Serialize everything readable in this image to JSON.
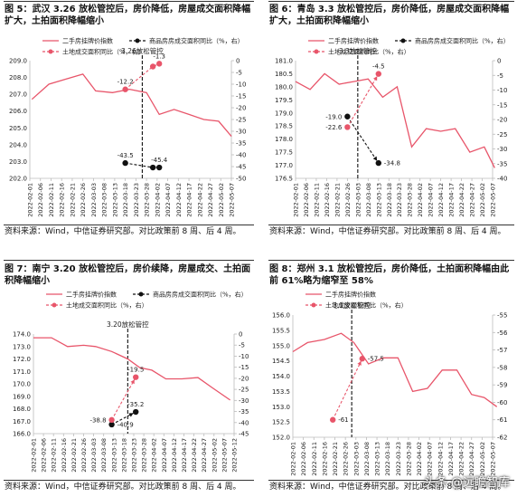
{
  "watermark": "头条 @远瞻智库",
  "chart_data": [
    {
      "type": "line",
      "title": "图 5：武汉 3.26 放松管控后，房价降低，房屋成交面积降幅扩大，土拍面积降幅缩小",
      "source": "资料来源：Wind，中信证券研究部。对比政策前 8 周、后 4 周。",
      "x": [
        "2022-02-01",
        "2022-02-06",
        "2022-02-11",
        "2022-02-16",
        "2022-02-21",
        "2022-02-26",
        "2022-03-03",
        "2022-03-08",
        "2022-03-13",
        "2022-03-18",
        "2022-03-23",
        "2022-03-28",
        "2022-04-02",
        "2022-04-07",
        "2022-04-12",
        "2022-04-17",
        "2022-04-22",
        "2022-04-27",
        "2022-05-02",
        "2022-05-07"
      ],
      "ylim_left": [
        202,
        209
      ],
      "yticks_left": [
        "202.0",
        "203.0",
        "204.0",
        "205.0",
        "206.0",
        "207.0",
        "208.0",
        "209.0"
      ],
      "ylim_right": [
        -50,
        0
      ],
      "yticks_right": [
        "0",
        "-5",
        "-10",
        "-15",
        "-20",
        "-25",
        "-30",
        "-35",
        "-40",
        "-45",
        "-50"
      ],
      "policy_line": {
        "label": "3.26放松管控",
        "x": "2022-03-26"
      },
      "legend": [
        "二手房挂牌价指数",
        "商品房房成交面积同比（%，右）",
        "土地成交面积同比（%，右）"
      ],
      "series": [
        {
          "name": "二手房挂牌价指数",
          "axis": "left",
          "color": "#e8556a",
          "style": "line",
          "points": [
            [
              "2022-02-02",
              206.7
            ],
            [
              "2022-02-10",
              207.6
            ],
            [
              "2022-02-18",
              207.9
            ],
            [
              "2022-02-26",
              208.2
            ],
            [
              "2022-03-04",
              207.2
            ],
            [
              "2022-03-12",
              207.1
            ],
            [
              "2022-03-20",
              207.3
            ],
            [
              "2022-03-28",
              207.1
            ],
            [
              "2022-04-03",
              205.8
            ],
            [
              "2022-04-10",
              206.1
            ],
            [
              "2022-04-17",
              205.8
            ],
            [
              "2022-04-24",
              205.5
            ],
            [
              "2022-05-01",
              205.4
            ],
            [
              "2022-05-07",
              204.5
            ]
          ]
        },
        {
          "name": "商品房房成交面积同比（%，右）",
          "axis": "right",
          "color": "#111111",
          "style": "dash",
          "points": [
            [
              "2022-03-18",
              -43.5
            ],
            [
              "2022-03-31",
              -45.4
            ],
            [
              "2022-04-03",
              -45.4
            ]
          ],
          "labels": [
            {
              "text": "-43.5",
              "i": 0,
              "pos": "above"
            },
            {
              "text": "-45.4",
              "i": 2,
              "pos": "above"
            }
          ]
        },
        {
          "name": "土地成交面积同比（%，右）",
          "axis": "right",
          "color": "#e8556a",
          "style": "dash",
          "points": [
            [
              "2022-03-18",
              -12.2
            ],
            [
              "2022-03-31",
              -2.5
            ],
            [
              "2022-04-03",
              -1.3
            ]
          ],
          "labels": [
            {
              "text": "-12.2",
              "i": 0,
              "pos": "above"
            },
            {
              "text": "-1.3",
              "i": 2,
              "pos": "above"
            }
          ]
        }
      ]
    },
    {
      "type": "line",
      "title": "图 6：青岛 3.3 放松管控后，房价降低，房屋成交面积降幅扩大，土拍面积降幅缩小",
      "source": "资料来源：Wind，中信证券研究部。对比政策前 8 周、后 4 周。",
      "x": [
        "2022-02-01",
        "2022-02-06",
        "2022-02-11",
        "2022-02-16",
        "2022-02-21",
        "2022-02-26",
        "2022-03-03",
        "2022-03-08",
        "2022-03-13",
        "2022-03-18",
        "2022-03-23",
        "2022-03-28",
        "2022-04-02",
        "2022-04-07",
        "2022-04-12",
        "2022-04-17",
        "2022-04-22",
        "2022-04-27",
        "2022-05-02",
        "2022-05-07"
      ],
      "ylim_left": [
        176.5,
        181
      ],
      "yticks_left": [
        "176.5",
        "177.0",
        "177.5",
        "178.0",
        "178.5",
        "179.0",
        "179.5",
        "180.0",
        "180.5",
        "181.0"
      ],
      "ylim_right": [
        -40,
        0
      ],
      "yticks_right": [
        "0",
        "-5",
        "-10",
        "-15",
        "-20",
        "-25",
        "-30",
        "-35",
        "-40"
      ],
      "policy_line": {
        "label": "3.3放松管控",
        "x": "2022-03-03"
      },
      "legend": [
        "二手房挂牌价指数",
        "商品房房成交面积同比（%，右）",
        "土地成交面积同比（%，右）"
      ],
      "series": [
        {
          "name": "二手房挂牌价指数",
          "axis": "left",
          "color": "#e8556a",
          "style": "line",
          "points": [
            [
              "2022-02-01",
              180.2
            ],
            [
              "2022-02-08",
              179.9
            ],
            [
              "2022-02-15",
              180.5
            ],
            [
              "2022-02-22",
              180.1
            ],
            [
              "2022-03-01",
              180.2
            ],
            [
              "2022-03-08",
              180.3
            ],
            [
              "2022-03-15",
              179.6
            ],
            [
              "2022-03-22",
              180.0
            ],
            [
              "2022-03-29",
              177.7
            ],
            [
              "2022-04-05",
              178.4
            ],
            [
              "2022-04-12",
              178.3
            ],
            [
              "2022-04-19",
              178.4
            ],
            [
              "2022-04-26",
              177.5
            ],
            [
              "2022-05-03",
              177.7
            ],
            [
              "2022-05-08",
              176.9
            ]
          ]
        },
        {
          "name": "商品房房成交面积同比（%，右）",
          "axis": "right",
          "color": "#111111",
          "style": "dash",
          "points": [
            [
              "2022-02-26",
              -19.0
            ],
            [
              "2022-03-13",
              -34.8
            ]
          ],
          "labels": [
            {
              "text": "-19.0",
              "i": 0,
              "pos": "left"
            },
            {
              "text": "-34.8",
              "i": 1,
              "pos": "right"
            }
          ]
        },
        {
          "name": "土地成交面积同比（%，右）",
          "axis": "right",
          "color": "#e8556a",
          "style": "dash",
          "points": [
            [
              "2022-02-26",
              -22.6
            ],
            [
              "2022-03-13",
              -4.5
            ]
          ],
          "labels": [
            {
              "text": "-22.6",
              "i": 0,
              "pos": "left"
            },
            {
              "text": "-4.5",
              "i": 1,
              "pos": "above"
            }
          ]
        }
      ]
    },
    {
      "type": "line",
      "title": "图 7：南宁 3.20 放松管控后，房价续降，房屋成交、土拍面积降幅缩小",
      "source": "资料来源：Wind，中信证券研究部。对比政策前 8 周、后 4 周。",
      "x": [
        "2022-02-01",
        "2022-02-06",
        "2022-02-11",
        "2022-02-16",
        "2022-02-21",
        "2022-02-26",
        "2022-03-03",
        "2022-03-08",
        "2022-03-13",
        "2022-03-18",
        "2022-03-23",
        "2022-03-28",
        "2022-04-02",
        "2022-04-07",
        "2022-04-12",
        "2022-04-17",
        "2022-04-22",
        "2022-04-27",
        "2022-05-02",
        "2022-05-07",
        "2022-05-12"
      ],
      "ylim_left": [
        166,
        174
      ],
      "yticks_left": [
        "166.0",
        "167.0",
        "168.0",
        "169.0",
        "170.0",
        "171.0",
        "172.0",
        "173.0",
        "174.0"
      ],
      "ylim_right": [
        -45,
        0
      ],
      "yticks_right": [
        "0",
        "-5",
        "-10",
        "-15",
        "-20",
        "-25",
        "-30",
        "-35",
        "-40",
        "-45"
      ],
      "policy_line": {
        "label": "3.20放松管控",
        "x": "2022-03-20"
      },
      "legend": [
        "二手房挂牌价指数",
        "商品房房成交面积同比（%，右）",
        "土地成交面积同比（%，右）"
      ],
      "series": [
        {
          "name": "二手房挂牌价指数",
          "axis": "left",
          "color": "#e8556a",
          "style": "line",
          "points": [
            [
              "2022-02-01",
              173.7
            ],
            [
              "2022-02-10",
              173.7
            ],
            [
              "2022-02-18",
              173.0
            ],
            [
              "2022-02-26",
              173.1
            ],
            [
              "2022-03-04",
              173.0
            ],
            [
              "2022-03-12",
              172.6
            ],
            [
              "2022-03-20",
              172.0
            ],
            [
              "2022-03-26",
              171.3
            ],
            [
              "2022-04-01",
              171.1
            ],
            [
              "2022-04-08",
              170.4
            ],
            [
              "2022-04-16",
              170.4
            ],
            [
              "2022-04-24",
              170.5
            ],
            [
              "2022-05-01",
              169.7
            ],
            [
              "2022-05-10",
              168.7
            ]
          ]
        },
        {
          "name": "商品房房成交面积同比（%，右）",
          "axis": "right",
          "color": "#111111",
          "style": "dash",
          "points": [
            [
              "2022-03-12",
              -40.9
            ],
            [
              "2022-03-24",
              -35.2
            ]
          ],
          "labels": [
            {
              "text": "-40.9",
              "i": 0,
              "pos": "right"
            },
            {
              "text": "-35.2",
              "i": 1,
              "pos": "above"
            }
          ]
        },
        {
          "name": "土地成交面积同比（%，右）",
          "axis": "right",
          "color": "#e8556a",
          "style": "dash",
          "points": [
            [
              "2022-03-12",
              -38.8
            ],
            [
              "2022-03-24",
              -19.5
            ]
          ],
          "labels": [
            {
              "text": "-38.8",
              "i": 0,
              "pos": "left"
            },
            {
              "text": "-19.5",
              "i": 1,
              "pos": "above"
            }
          ]
        }
      ]
    },
    {
      "type": "line",
      "title": "图 8：郑州 3.1 放松管控后，房价降低，土拍面积降幅由此前 61%略为缩窄至 58%",
      "source": "资料来源：Wind，中信证券研究部。对比政策前 8 周、后 4 周。",
      "x": [
        "2022-02-01",
        "2022-02-06",
        "2022-02-11",
        "2022-02-16",
        "2022-02-21",
        "2022-02-26",
        "2022-03-03",
        "2022-03-08",
        "2022-03-13",
        "2022-03-18",
        "2022-03-23",
        "2022-03-28",
        "2022-04-02",
        "2022-04-07",
        "2022-04-12",
        "2022-04-17",
        "2022-04-22",
        "2022-04-27",
        "2022-05-02",
        "2022-05-07"
      ],
      "ylim_left": [
        152,
        156
      ],
      "yticks_left": [
        "152.0",
        "152.5",
        "153.0",
        "153.5",
        "154.0",
        "154.5",
        "155.0",
        "155.5",
        "156.0"
      ],
      "ylim_right": [
        -62,
        -55
      ],
      "yticks_right": [
        "-55",
        "-56",
        "-57",
        "-58",
        "-59",
        "-60",
        "-61",
        "-62"
      ],
      "policy_line": {
        "label": "3.1放松管控",
        "x": "2022-03-01"
      },
      "legend": [
        "二手房挂牌价指数",
        "土地成交面积同比（%，右）"
      ],
      "series": [
        {
          "name": "二手房挂牌价指数",
          "axis": "left",
          "color": "#e8556a",
          "style": "line",
          "points": [
            [
              "2022-02-01",
              154.8
            ],
            [
              "2022-02-08",
              155.1
            ],
            [
              "2022-02-16",
              155.2
            ],
            [
              "2022-02-24",
              155.4
            ],
            [
              "2022-03-02",
              155.1
            ],
            [
              "2022-03-09",
              154.4
            ],
            [
              "2022-03-16",
              154.6
            ],
            [
              "2022-03-23",
              154.6
            ],
            [
              "2022-03-30",
              153.5
            ],
            [
              "2022-04-06",
              153.6
            ],
            [
              "2022-04-13",
              154.2
            ],
            [
              "2022-04-20",
              154.2
            ],
            [
              "2022-04-27",
              153.4
            ],
            [
              "2022-05-03",
              153.3
            ],
            [
              "2022-05-09",
              153.0
            ]
          ]
        },
        {
          "name": "土地成交面积同比（%，右）",
          "axis": "right",
          "color": "#e8556a",
          "style": "dash",
          "points": [
            [
              "2022-02-20",
              -61.0
            ],
            [
              "2022-03-06",
              -57.5
            ]
          ],
          "labels": [
            {
              "text": "-61",
              "i": 0,
              "pos": "right"
            },
            {
              "text": "-57.5",
              "i": 1,
              "pos": "right"
            }
          ]
        }
      ]
    }
  ]
}
